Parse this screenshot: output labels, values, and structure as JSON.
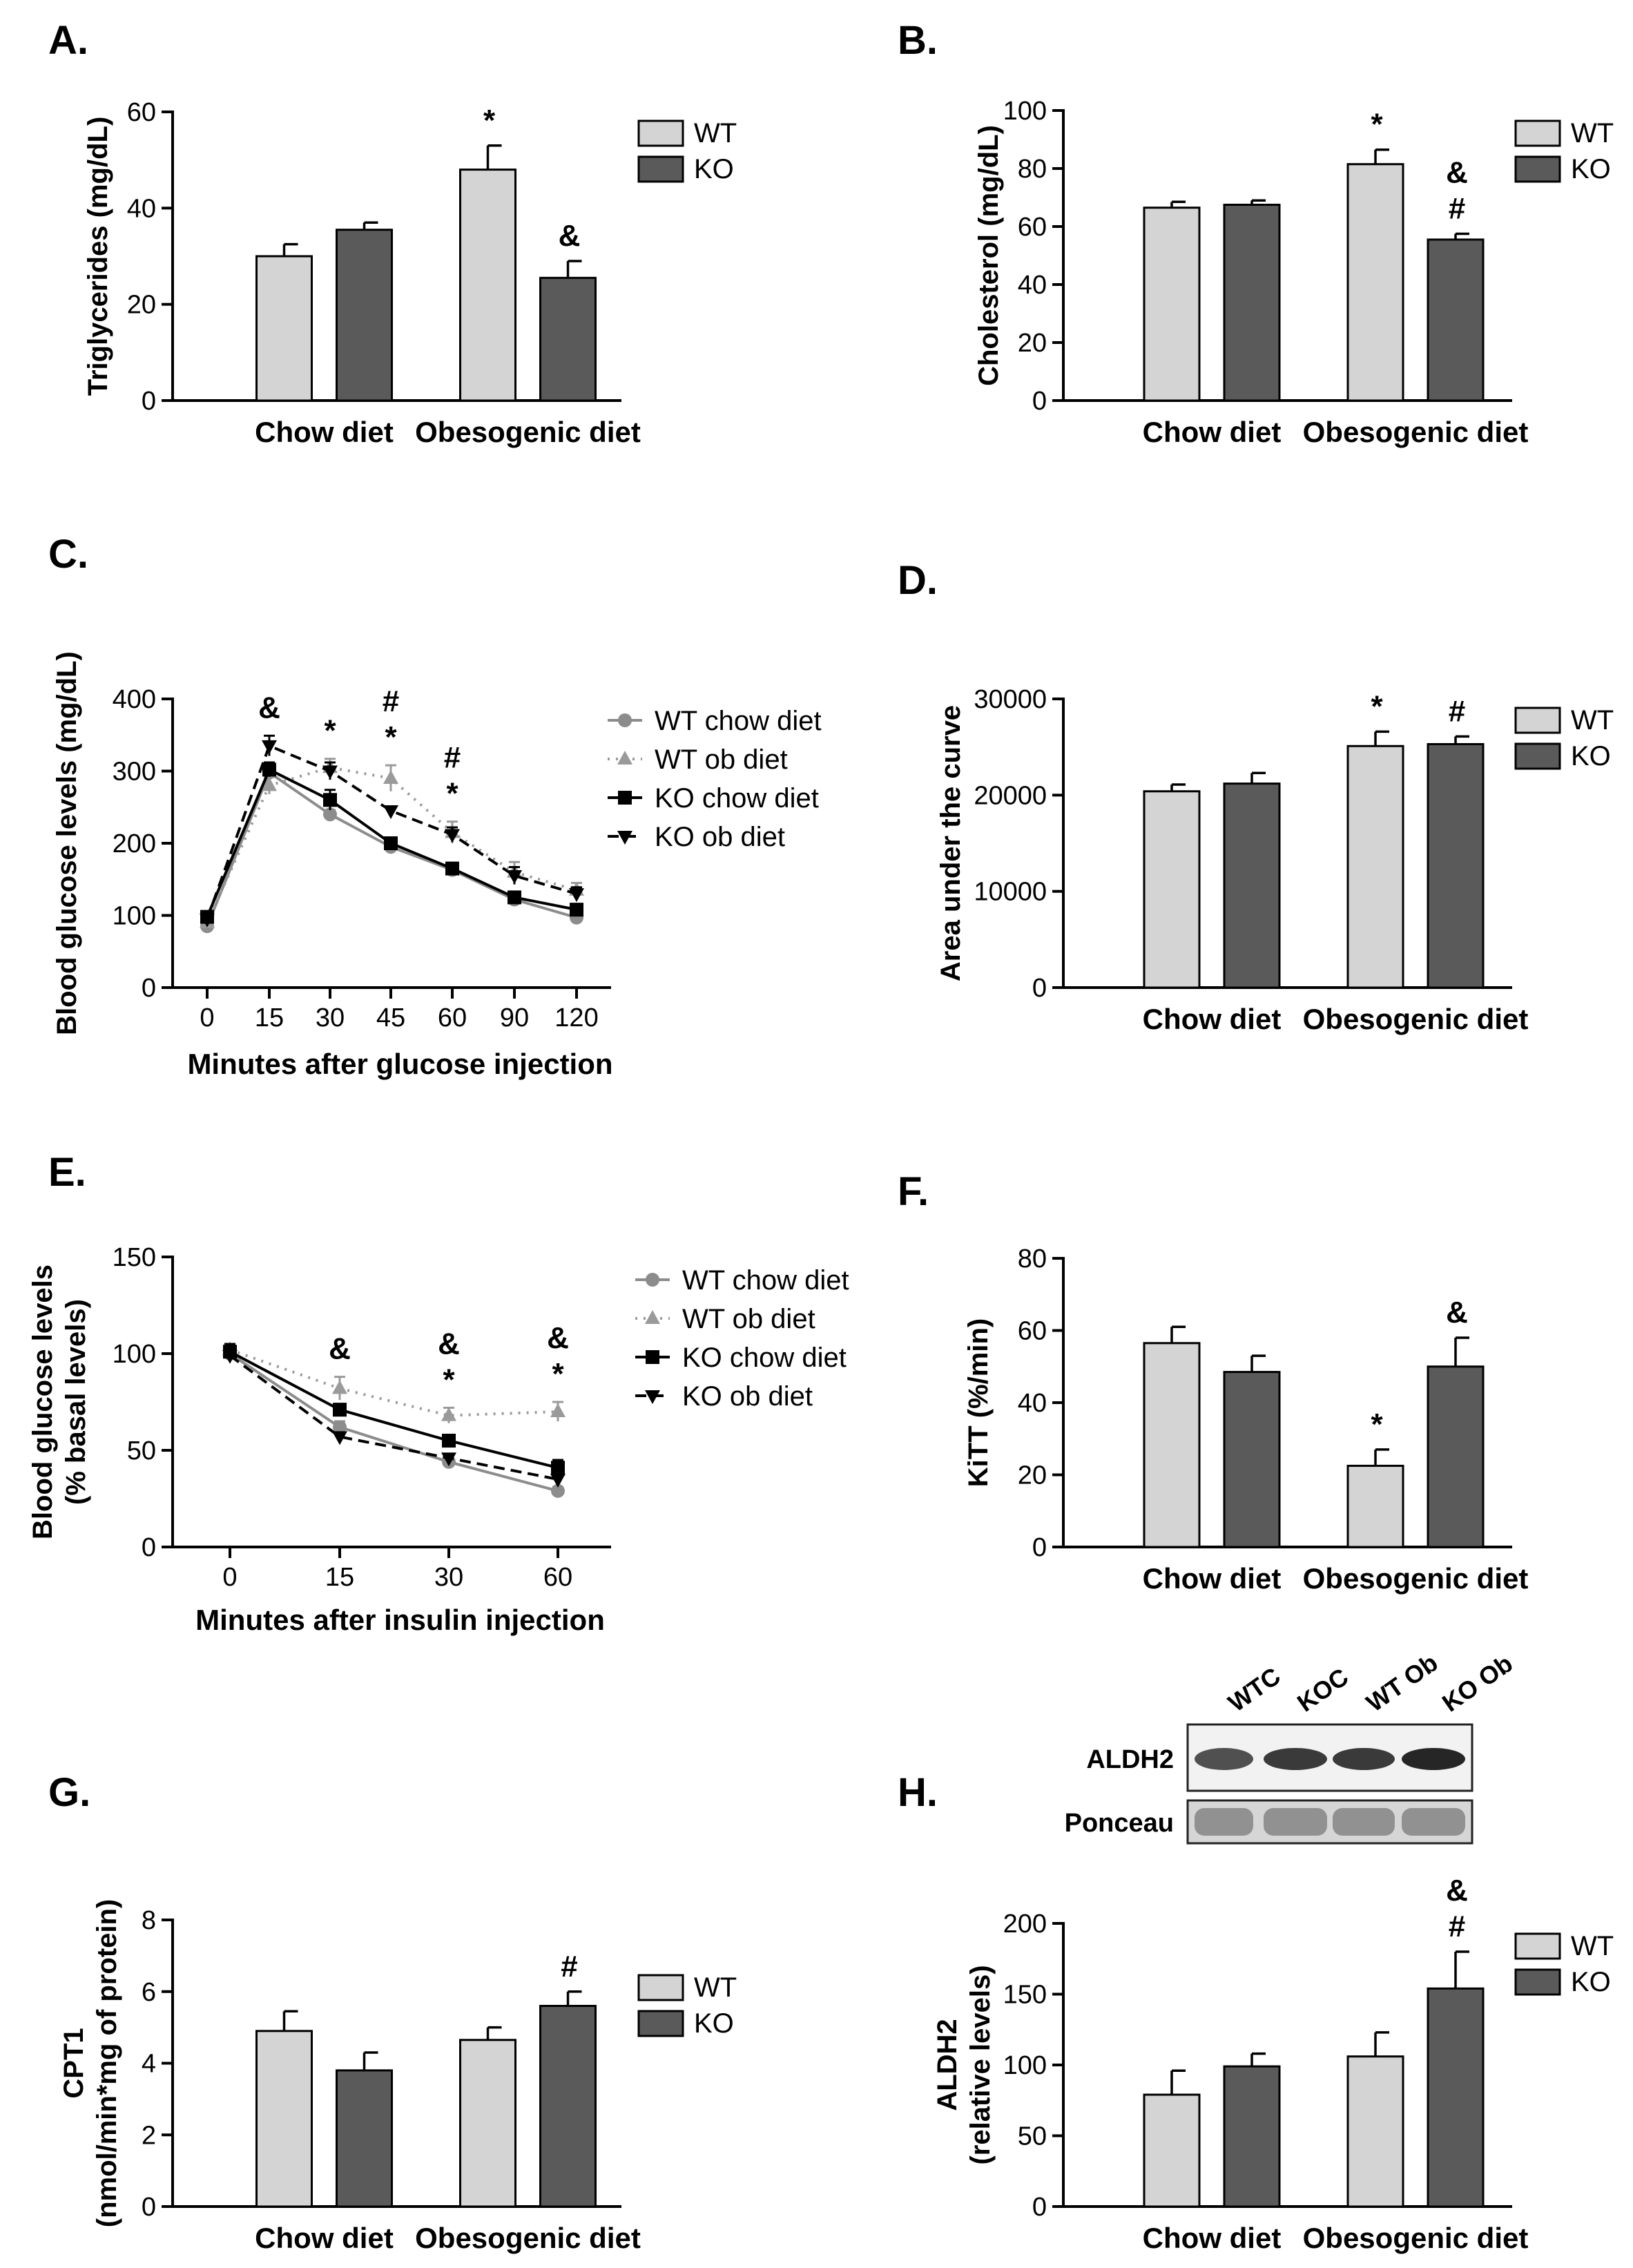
{
  "colors": {
    "WT": "#d4d4d4",
    "KO": "#5a5a5a",
    "axis": "#000000"
  },
  "blot": {
    "lanes": [
      "WTC",
      "KOC",
      "WT Ob",
      "KO Ob"
    ],
    "rows": [
      "ALDH2",
      "Ponceau"
    ]
  },
  "chart_data": [
    {
      "letter": "A.",
      "type": "bar",
      "categories": [
        "Chow diet",
        "Obesogenic diet"
      ],
      "series": [
        {
          "name": "WT",
          "values": [
            30,
            48
          ],
          "errors": [
            2.5,
            5
          ]
        },
        {
          "name": "KO",
          "values": [
            35.5,
            25.5
          ],
          "errors": [
            1.5,
            3.5
          ]
        }
      ],
      "ylabel": "Triglycerides (mg/dL)",
      "xlabel": "",
      "ylim": [
        0,
        60
      ],
      "yticks": [
        "0",
        "20",
        "40",
        "60"
      ],
      "annotations": [
        {
          "series": 0,
          "cat": 1,
          "text": "*"
        },
        {
          "series": 1,
          "cat": 1,
          "text": "&"
        }
      ],
      "legend": "right"
    },
    {
      "letter": "B.",
      "type": "bar",
      "categories": [
        "Chow diet",
        "Obesogenic diet"
      ],
      "series": [
        {
          "name": "WT",
          "values": [
            66.5,
            81.5
          ],
          "errors": [
            2,
            5
          ]
        },
        {
          "name": "KO",
          "values": [
            67.5,
            55.5
          ],
          "errors": [
            1.5,
            2
          ]
        }
      ],
      "ylabel": "Cholesterol (mg/dL)",
      "xlabel": "",
      "ylim": [
        0,
        100
      ],
      "yticks": [
        "0",
        "20",
        "40",
        "60",
        "80",
        "100"
      ],
      "annotations": [
        {
          "series": 0,
          "cat": 1,
          "text": "*"
        },
        {
          "series": 1,
          "cat": 1,
          "text": "#"
        },
        {
          "series": 1,
          "cat": 1,
          "text": "&"
        }
      ],
      "legend": "right"
    },
    {
      "letter": "C.",
      "type": "line",
      "x": [
        "0",
        "15",
        "30",
        "45",
        "60",
        "90",
        "120"
      ],
      "series": [
        {
          "name": "WT chow diet",
          "values": [
            85,
            298,
            240,
            195,
            163,
            122,
            97
          ],
          "errors": [
            4,
            8,
            6,
            6,
            6,
            4,
            4
          ]
        },
        {
          "name": "WT ob diet",
          "values": [
            90,
            280,
            305,
            290,
            215,
            160,
            135
          ],
          "errors": [
            5,
            12,
            12,
            18,
            15,
            14,
            10
          ]
        },
        {
          "name": "KO chow diet",
          "values": [
            98,
            302,
            260,
            200,
            165,
            125,
            108
          ],
          "errors": [
            5,
            10,
            14,
            7,
            6,
            5,
            5
          ]
        },
        {
          "name": "KO ob diet",
          "values": [
            95,
            335,
            300,
            245,
            212,
            155,
            130
          ],
          "errors": [
            4,
            14,
            12,
            6,
            10,
            12,
            9
          ]
        }
      ],
      "ylabel": "Blood glucose levels (mg/dL)",
      "xlabel": "Minutes after glucose injection",
      "ylim": [
        0,
        400
      ],
      "yticks": [
        "0",
        "100",
        "200",
        "300",
        "400"
      ],
      "annotations": [
        {
          "x": 1,
          "lines": [
            "&"
          ]
        },
        {
          "x": 2,
          "lines": [
            "*"
          ]
        },
        {
          "x": 3,
          "lines": [
            "#",
            "*"
          ]
        },
        {
          "x": 4,
          "lines": [
            "#",
            "*"
          ]
        }
      ],
      "legend": "right"
    },
    {
      "letter": "D.",
      "type": "bar",
      "categories": [
        "Chow diet",
        "Obesogenic diet"
      ],
      "series": [
        {
          "name": "WT",
          "values": [
            20400,
            25100
          ],
          "errors": [
            700,
            1500
          ]
        },
        {
          "name": "KO",
          "values": [
            21200,
            25300
          ],
          "errors": [
            1100,
            800
          ]
        }
      ],
      "ylabel": "Area under the curve",
      "xlabel": "",
      "ylim": [
        0,
        30000
      ],
      "yticks": [
        "0",
        "10000",
        "20000",
        "30000"
      ],
      "annotations": [
        {
          "series": 0,
          "cat": 1,
          "text": "*"
        },
        {
          "series": 1,
          "cat": 1,
          "text": "#"
        }
      ],
      "legend": "right"
    },
    {
      "letter": "E.",
      "type": "line",
      "x": [
        "0",
        "15",
        "30",
        "60"
      ],
      "series": [
        {
          "name": "WT chow diet",
          "values": [
            100,
            62,
            44,
            29
          ],
          "errors": [
            3,
            3,
            2,
            2
          ]
        },
        {
          "name": "WT ob diet",
          "values": [
            102,
            82,
            68,
            70
          ],
          "errors": [
            3,
            6,
            4,
            5
          ]
        },
        {
          "name": "KO chow diet",
          "values": [
            101,
            71,
            55,
            41
          ],
          "errors": [
            4,
            3,
            3,
            4
          ]
        },
        {
          "name": "KO ob diet",
          "values": [
            99,
            57,
            46,
            35
          ],
          "errors": [
            3,
            2,
            2,
            3
          ]
        }
      ],
      "ylabel": "Blood glucose levels (% basal levels)",
      "ylabel_lines": [
        "Blood glucose levels",
        "(% basal levels)"
      ],
      "xlabel": "Minutes after insulin injection",
      "ylim": [
        0,
        150
      ],
      "yticks": [
        "0",
        "50",
        "100",
        "150"
      ],
      "annotations": [
        {
          "x": 1,
          "lines": [
            "&"
          ]
        },
        {
          "x": 2,
          "lines": [
            "&",
            "*"
          ]
        },
        {
          "x": 3,
          "lines": [
            "&",
            "*"
          ]
        }
      ],
      "legend": "right"
    },
    {
      "letter": "F.",
      "type": "bar",
      "categories": [
        "Chow diet",
        "Obesogenic diet"
      ],
      "series": [
        {
          "name": "WT",
          "values": [
            56.5,
            22.5
          ],
          "errors": [
            4.5,
            4.5
          ]
        },
        {
          "name": "KO",
          "values": [
            48.5,
            50
          ],
          "errors": [
            4.5,
            8
          ]
        }
      ],
      "ylabel": "KiTT (%/min)",
      "xlabel": "",
      "ylim": [
        0,
        80
      ],
      "yticks": [
        "0",
        "20",
        "40",
        "60",
        "80"
      ],
      "annotations": [
        {
          "series": 0,
          "cat": 1,
          "text": "*"
        },
        {
          "series": 1,
          "cat": 1,
          "text": "&"
        }
      ],
      "legend": "none"
    },
    {
      "letter": "G.",
      "type": "bar",
      "categories": [
        "Chow diet",
        "Obesogenic diet"
      ],
      "series": [
        {
          "name": "WT",
          "values": [
            4.9,
            4.65
          ],
          "errors": [
            0.55,
            0.35
          ]
        },
        {
          "name": "KO",
          "values": [
            3.8,
            5.6
          ],
          "errors": [
            0.5,
            0.4
          ]
        }
      ],
      "ylabel": "CPT1 (nmol/min*mg of protein)",
      "ylabel_lines": [
        "CPT1",
        "(nmol/min*mg of protein)"
      ],
      "xlabel": "",
      "ylim": [
        0,
        8
      ],
      "yticks": [
        "0",
        "2",
        "4",
        "6",
        "8"
      ],
      "annotations": [
        {
          "series": 1,
          "cat": 1,
          "text": "#"
        }
      ],
      "legend": "right"
    },
    {
      "letter": "H.",
      "type": "bar",
      "categories": [
        "Chow diet",
        "Obesogenic diet"
      ],
      "series": [
        {
          "name": "WT",
          "values": [
            79,
            106
          ],
          "errors": [
            17,
            17
          ]
        },
        {
          "name": "KO",
          "values": [
            99,
            154
          ],
          "errors": [
            9,
            26
          ]
        }
      ],
      "ylabel": "ALDH2 (relative levels)",
      "ylabel_lines": [
        "ALDH2",
        "(relative levels)"
      ],
      "xlabel": "",
      "ylim": [
        0,
        200
      ],
      "yticks": [
        "0",
        "50",
        "100",
        "150",
        "200"
      ],
      "annotations": [
        {
          "series": 1,
          "cat": 1,
          "text": "#"
        },
        {
          "series": 1,
          "cat": 1,
          "text": "&"
        }
      ],
      "legend": "right"
    }
  ]
}
